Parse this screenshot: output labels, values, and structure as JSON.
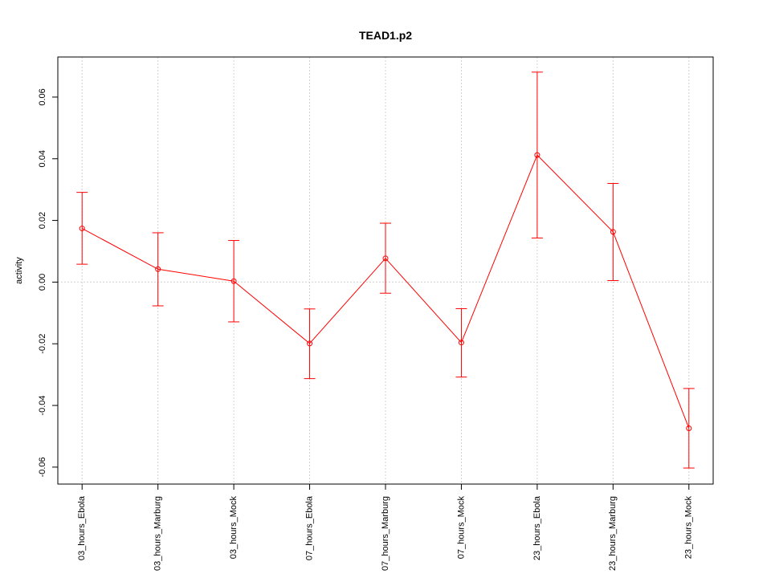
{
  "chart_data": {
    "type": "line",
    "title": "TEAD1.p2",
    "xlabel": "",
    "ylabel": "activity",
    "categories": [
      "03_hours_Ebola",
      "03_hours_Marburg",
      "03_hours_Mock",
      "07_hours_Ebola",
      "07_hours_Marburg",
      "07_hours_Mock",
      "23_hours_Ebola",
      "23_hours_Marburg",
      "23_hours_Mock"
    ],
    "values": [
      0.0174,
      0.0042,
      0.0003,
      -0.0199,
      0.0077,
      -0.0196,
      0.0412,
      0.0163,
      -0.0474
    ],
    "error_lower": [
      0.0058,
      -0.0077,
      -0.0129,
      -0.0313,
      -0.0036,
      -0.0308,
      0.0143,
      0.0005,
      -0.0603
    ],
    "error_upper": [
      0.0291,
      0.016,
      0.0135,
      -0.0087,
      0.0191,
      -0.0086,
      0.0681,
      0.032,
      -0.0345
    ],
    "yticks": [
      -0.06,
      -0.04,
      -0.02,
      0.0,
      0.02,
      0.04,
      0.06
    ],
    "ytick_labels": [
      "-0.06",
      "-0.04",
      "-0.02",
      "0.00",
      "0.02",
      "0.04",
      "0.06"
    ],
    "ylim": [
      -0.0655,
      0.073
    ],
    "grid": true,
    "zero_line": true,
    "series_color": "#ff0000",
    "grid_color": "#d3d3d3"
  }
}
